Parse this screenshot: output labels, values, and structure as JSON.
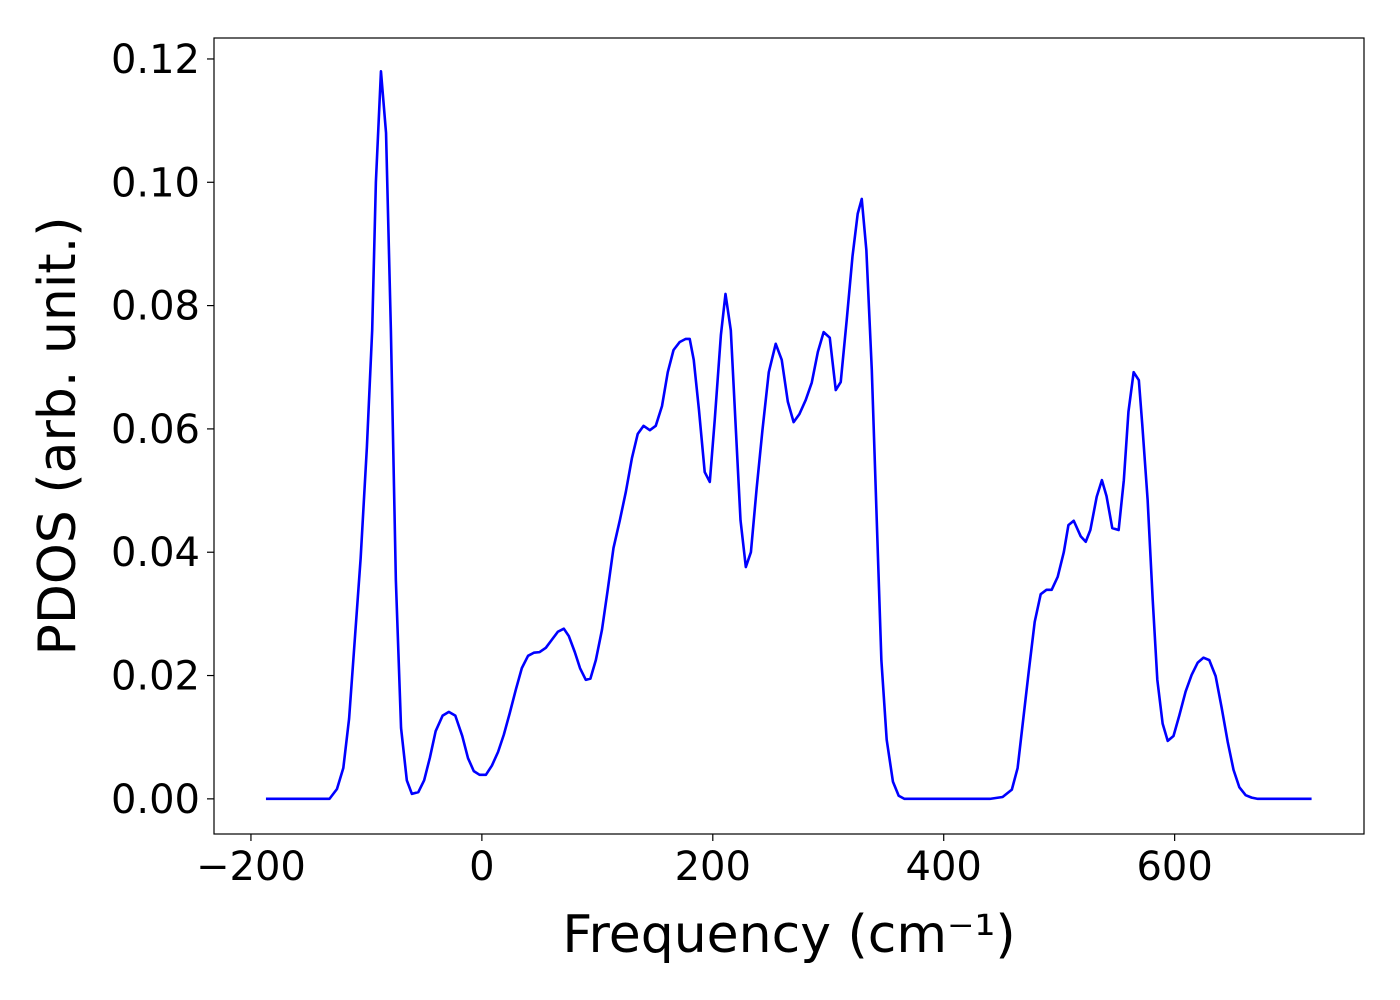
{
  "chart_data": {
    "type": "line",
    "xlabel": "Frequency (cm⁻¹)",
    "ylabel": "PDOS (arb. unit.)",
    "xlim": [
      -232,
      764
    ],
    "ylim": [
      -0.0057,
      0.1234
    ],
    "xticks": [
      {
        "value": -200,
        "label": "−200"
      },
      0,
      200,
      400,
      600
    ],
    "yticks": [
      {
        "value": 0,
        "label": "0.00"
      },
      {
        "value": 0.02,
        "label": "0.02"
      },
      {
        "value": 0.04,
        "label": "0.04"
      },
      {
        "value": 0.06,
        "label": "0.06"
      },
      {
        "value": 0.08,
        "label": "0.08"
      },
      {
        "value": 0.1,
        "label": "0.10"
      },
      {
        "value": 0.12,
        "label": "0.12"
      }
    ],
    "grid": false,
    "series": [
      {
        "color": "#0000ff",
        "x": [
          -187,
          -132,
          -125.5,
          -120,
          -115,
          -110,
          -105,
          -99.6,
          -95,
          -91.8,
          -87.4,
          -83,
          -78.8,
          -74.5,
          -70,
          -65,
          -60.6,
          -55,
          -50,
          -45,
          -40,
          -34,
          -28.6,
          -23,
          -17,
          -12,
          -7,
          -2,
          3.5,
          8.7,
          14,
          19,
          24,
          29.4,
          34.6,
          40,
          45,
          50,
          55.4,
          60.6,
          65.8,
          71,
          75.3,
          80.5,
          85,
          90,
          94,
          98.7,
          104,
          109,
          114,
          119.5,
          124.7,
          130,
          135,
          140,
          145.5,
          150.6,
          156,
          161,
          166,
          171.4,
          176.6,
          180,
          183.5,
          188,
          193,
          197.4,
          201.7,
          207,
          211,
          215.6,
          220,
          224,
          228.6,
          233,
          238,
          243,
          248.5,
          254.5,
          259.7,
          265,
          270,
          275,
          280.5,
          285.7,
          291,
          296,
          301.3,
          306.5,
          310.8,
          316,
          321,
          325.5,
          329,
          333,
          337.7,
          342,
          346,
          350.6,
          356,
          361,
          366,
          440,
          451,
          459,
          464,
          468,
          473.6,
          478.8,
          484,
          489,
          493.5,
          498.7,
          504,
          508,
          512.6,
          518.6,
          523,
          527,
          532.5,
          537,
          541,
          546,
          551.5,
          556,
          560,
          564.5,
          569,
          572,
          576.6,
          581,
          585,
          589.6,
          594,
          599,
          604,
          609.5,
          614.7,
          620,
          625,
          630,
          635.5,
          640.7,
          646,
          651,
          656,
          661.5,
          666.7,
          672,
          718.6
        ],
        "values": [
          0,
          0,
          0.0016,
          0.005,
          0.013,
          0.026,
          0.039,
          0.057,
          0.076,
          0.1,
          0.118,
          0.108,
          0.076,
          0.0355,
          0.0115,
          0.003,
          0.0008,
          0.0011,
          0.003,
          0.0067,
          0.011,
          0.0135,
          0.0141,
          0.0135,
          0.0102,
          0.0066,
          0.0045,
          0.0039,
          0.0039,
          0.0054,
          0.0076,
          0.0104,
          0.0138,
          0.0177,
          0.0212,
          0.0232,
          0.0237,
          0.0238,
          0.0245,
          0.0258,
          0.0271,
          0.0276,
          0.0264,
          0.0238,
          0.0212,
          0.0193,
          0.0195,
          0.0225,
          0.0274,
          0.0339,
          0.0407,
          0.0452,
          0.0498,
          0.0553,
          0.0592,
          0.0605,
          0.0598,
          0.0605,
          0.0637,
          0.0692,
          0.0728,
          0.0741,
          0.0746,
          0.0746,
          0.0712,
          0.0631,
          0.053,
          0.0514,
          0.0615,
          0.0752,
          0.0819,
          0.076,
          0.0598,
          0.0452,
          0.0376,
          0.04,
          0.0504,
          0.0598,
          0.0692,
          0.0738,
          0.0712,
          0.0644,
          0.0611,
          0.0624,
          0.0647,
          0.0675,
          0.0725,
          0.0757,
          0.0748,
          0.0663,
          0.0676,
          0.0777,
          0.088,
          0.0949,
          0.0973,
          0.089,
          0.0696,
          0.0452,
          0.0225,
          0.0096,
          0.0028,
          0.0005,
          0,
          0,
          0.0003,
          0.0015,
          0.005,
          0.0115,
          0.0206,
          0.0287,
          0.0332,
          0.0339,
          0.0339,
          0.036,
          0.04,
          0.0444,
          0.0451,
          0.0426,
          0.0417,
          0.0436,
          0.049,
          0.0517,
          0.0491,
          0.0439,
          0.0436,
          0.0517,
          0.0628,
          0.0692,
          0.0679,
          0.0606,
          0.0485,
          0.0323,
          0.0193,
          0.0122,
          0.0094,
          0.0102,
          0.0135,
          0.0174,
          0.0201,
          0.0221,
          0.0229,
          0.0225,
          0.0199,
          0.0148,
          0.0092,
          0.0047,
          0.0019,
          0.0006,
          0.0002,
          0,
          0
        ]
      }
    ]
  }
}
